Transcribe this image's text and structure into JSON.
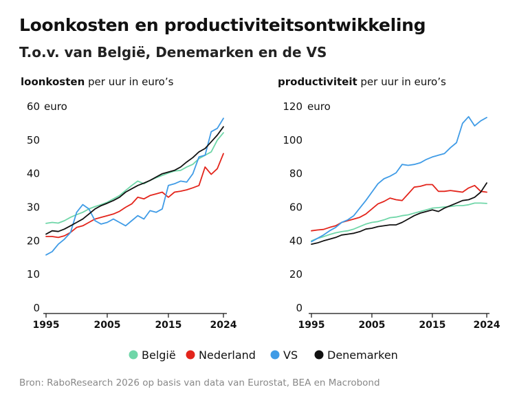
{
  "title": "Loonkosten en productiviteitsontwikkeling",
  "subtitle": "T.o.v. van België, Denemarken en de VS",
  "source": "Bron: RaboResearch 2026 op basis van data van Eurostat, BEA en Macrobond",
  "colors": {
    "België": "#6fd6a8",
    "Nederland": "#e3241b",
    "VS": "#3f9be6",
    "Denemarken": "#111111"
  },
  "legend": [
    "België",
    "Nederland",
    "VS",
    "Denemarken"
  ],
  "chart_data": [
    {
      "type": "line",
      "title_bold": "loonkosten",
      "title_rest": " per uur in euro’s",
      "unit": "euro",
      "ylim": [
        0,
        60
      ],
      "yticks": [
        0,
        10,
        20,
        30,
        40,
        50,
        60
      ],
      "xlim": [
        1995,
        2024
      ],
      "xticks": [
        1995,
        2005,
        2015,
        2024
      ],
      "grid": false,
      "legend_position": "bottom",
      "x": [
        1995,
        1996,
        1997,
        1998,
        1999,
        2000,
        2001,
        2002,
        2003,
        2004,
        2005,
        2006,
        2007,
        2008,
        2009,
        2010,
        2011,
        2012,
        2013,
        2014,
        2015,
        2016,
        2017,
        2018,
        2019,
        2020,
        2021,
        2022,
        2023,
        2024
      ],
      "series": [
        {
          "name": "België",
          "values": [
            25.2,
            25.5,
            25.3,
            26.0,
            27.0,
            27.8,
            28.5,
            29.5,
            30.2,
            30.8,
            31.5,
            32.5,
            33.5,
            35.0,
            36.5,
            37.8,
            37.0,
            38.0,
            38.8,
            39.5,
            40.2,
            40.8,
            41.0,
            42.0,
            42.8,
            44.5,
            45.5,
            46.5,
            50.0,
            52.2
          ]
        },
        {
          "name": "Nederland",
          "values": [
            21.3,
            21.3,
            21.0,
            21.5,
            22.5,
            24.0,
            24.5,
            25.5,
            26.5,
            27.0,
            27.5,
            28.0,
            28.8,
            30.0,
            31.0,
            33.0,
            32.5,
            33.5,
            34.0,
            34.5,
            33.0,
            34.5,
            34.8,
            35.2,
            35.8,
            36.5,
            42.0,
            39.8,
            41.5,
            46.0
          ]
        },
        {
          "name": "VS",
          "values": [
            15.8,
            16.8,
            19.0,
            20.5,
            22.5,
            28.5,
            30.8,
            29.5,
            26.0,
            25.0,
            25.5,
            26.5,
            25.5,
            24.5,
            26.0,
            27.5,
            26.5,
            29.0,
            28.5,
            29.5,
            36.5,
            37.0,
            37.8,
            37.5,
            40.0,
            45.0,
            45.5,
            52.5,
            53.5,
            56.5
          ]
        },
        {
          "name": "Denemarken",
          "values": [
            22.0,
            23.0,
            22.8,
            23.5,
            24.5,
            25.5,
            26.5,
            28.0,
            29.5,
            30.5,
            31.2,
            32.0,
            33.0,
            34.5,
            35.5,
            36.5,
            37.2,
            38.0,
            39.0,
            40.0,
            40.5,
            41.0,
            42.0,
            43.5,
            44.8,
            46.5,
            47.5,
            49.5,
            51.5,
            54.0
          ]
        }
      ]
    },
    {
      "type": "line",
      "title_bold": "productiviteit",
      "title_rest": " per uur in euro’s",
      "unit": "euro",
      "ylim": [
        0,
        120
      ],
      "yticks": [
        0,
        20,
        40,
        60,
        80,
        100,
        120
      ],
      "xlim": [
        1995,
        2024
      ],
      "xticks": [
        1995,
        2005,
        2015,
        2024
      ],
      "grid": false,
      "legend_position": "bottom",
      "x": [
        1995,
        1996,
        1997,
        1998,
        1999,
        2000,
        2001,
        2002,
        2003,
        2004,
        2005,
        2006,
        2007,
        2008,
        2009,
        2010,
        2011,
        2012,
        2013,
        2014,
        2015,
        2016,
        2017,
        2018,
        2019,
        2020,
        2021,
        2022,
        2023,
        2024
      ],
      "series": [
        {
          "name": "België",
          "values": [
            40.0,
            41.5,
            42.5,
            43.8,
            44.8,
            45.5,
            46.0,
            47.0,
            48.5,
            50.0,
            51.0,
            51.5,
            52.5,
            53.8,
            54.2,
            55.0,
            55.5,
            56.5,
            57.5,
            58.5,
            59.5,
            59.8,
            60.2,
            60.5,
            61.0,
            61.0,
            61.5,
            62.5,
            62.5,
            62.3
          ]
        },
        {
          "name": "Nederland",
          "values": [
            46.0,
            46.5,
            46.8,
            48.0,
            49.0,
            51.0,
            52.0,
            53.0,
            54.0,
            56.0,
            59.0,
            62.0,
            63.5,
            65.5,
            64.5,
            64.0,
            68.0,
            72.0,
            72.5,
            73.5,
            73.5,
            69.5,
            69.5,
            70.0,
            69.5,
            69.0,
            71.5,
            73.0,
            69.5,
            69.0
          ]
        },
        {
          "name": "VS",
          "values": [
            39.5,
            41.5,
            43.5,
            46.0,
            48.0,
            51.0,
            52.5,
            55.0,
            59.5,
            64.0,
            69.0,
            74.0,
            77.0,
            78.5,
            80.5,
            85.5,
            85.0,
            85.5,
            86.5,
            88.5,
            90.0,
            91.0,
            92.0,
            95.5,
            98.5,
            110.0,
            114.0,
            108.5,
            111.5,
            113.5
          ]
        },
        {
          "name": "Denemarken",
          "values": [
            38.0,
            38.8,
            40.0,
            41.0,
            42.0,
            43.5,
            44.0,
            44.5,
            45.5,
            47.0,
            47.5,
            48.5,
            49.0,
            49.5,
            49.5,
            51.0,
            53.0,
            55.0,
            56.5,
            57.5,
            58.5,
            57.5,
            59.5,
            61.0,
            62.5,
            64.0,
            64.5,
            66.0,
            69.0,
            74.5
          ]
        }
      ]
    }
  ]
}
